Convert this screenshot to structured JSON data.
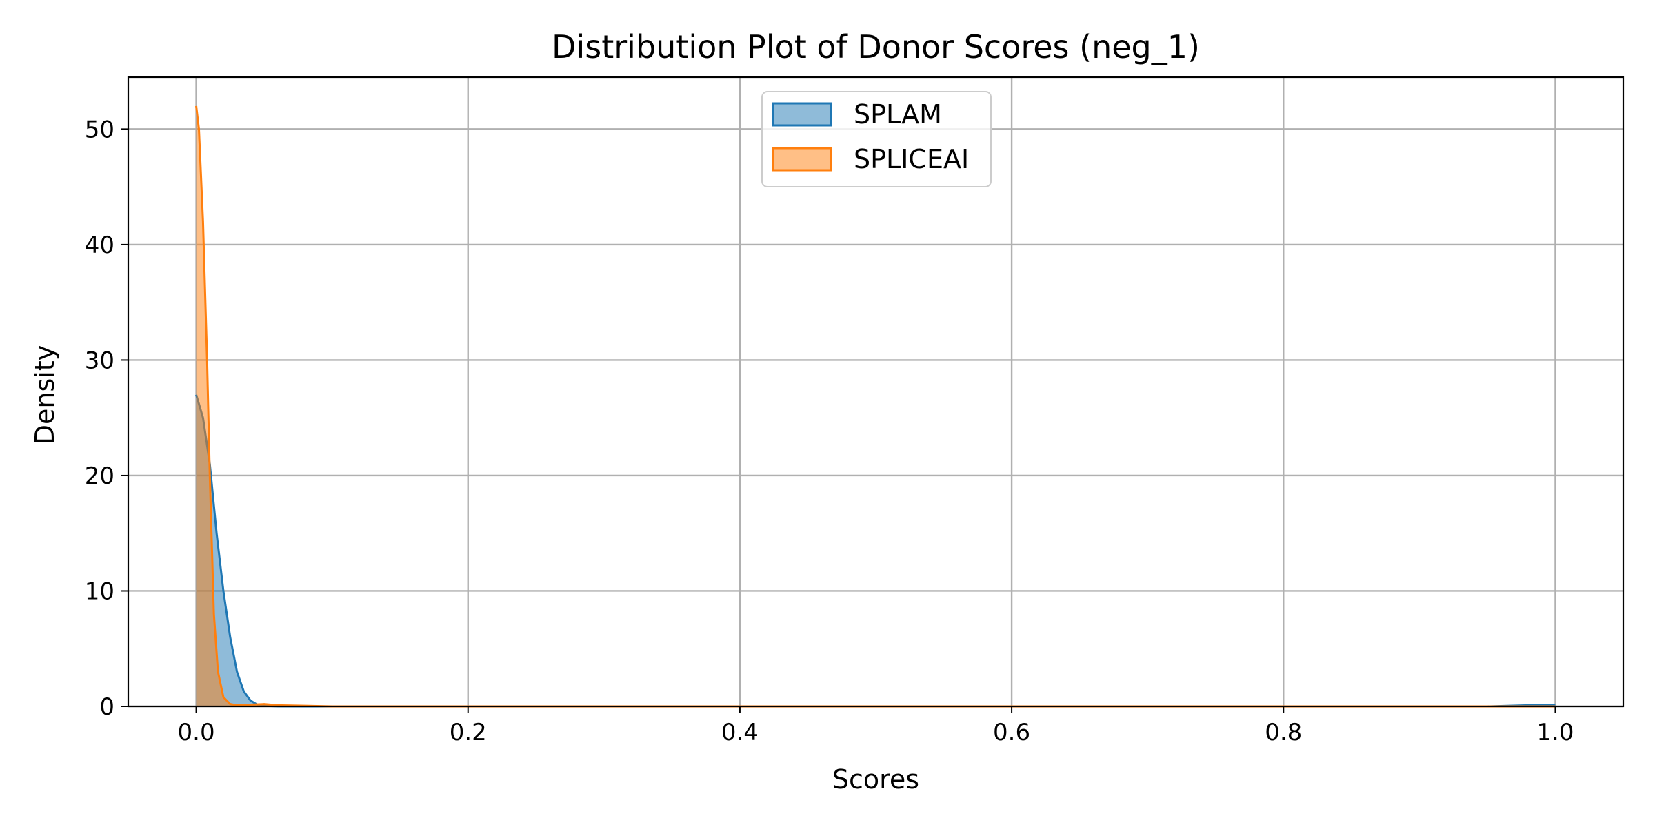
{
  "chart_data": {
    "type": "area",
    "title": "Distribution Plot of Donor Scores (neg_1)",
    "xlabel": "Scores",
    "ylabel": "Density",
    "xlim": [
      -0.05,
      1.05
    ],
    "ylim": [
      0,
      54.5
    ],
    "xticks": [
      0.0,
      0.2,
      0.4,
      0.6,
      0.8,
      1.0
    ],
    "xtick_labels": [
      "0.0",
      "0.2",
      "0.4",
      "0.6",
      "0.8",
      "1.0"
    ],
    "yticks": [
      0,
      10,
      20,
      30,
      40,
      50
    ],
    "ytick_labels": [
      "0",
      "10",
      "20",
      "30",
      "40",
      "50"
    ],
    "grid": true,
    "legend_position": "top-center",
    "series": [
      {
        "name": "SPLAM",
        "color": "#1f77b4",
        "fill_color": "#1f77b4",
        "x": [
          0.0,
          0.005,
          0.01,
          0.015,
          0.02,
          0.025,
          0.03,
          0.035,
          0.04,
          0.045,
          0.05,
          0.06,
          0.08,
          0.1,
          0.2,
          0.4,
          0.6,
          0.8,
          0.95,
          0.98,
          1.0
        ],
        "y": [
          27.0,
          25.0,
          21.0,
          15.0,
          10.0,
          6.0,
          3.0,
          1.3,
          0.5,
          0.15,
          0.05,
          0.01,
          0.0,
          0.0,
          0.0,
          0.0,
          0.0,
          0.0,
          0.0,
          0.1,
          0.1
        ]
      },
      {
        "name": "SPLICEAI",
        "color": "#ff7f0e",
        "fill_color": "#ff7f0e",
        "x": [
          0.0,
          0.002,
          0.005,
          0.008,
          0.01,
          0.013,
          0.016,
          0.02,
          0.025,
          0.03,
          0.04,
          0.05,
          0.06,
          0.08,
          0.1,
          0.2,
          0.4,
          0.6,
          0.8,
          1.0
        ],
        "y": [
          52.0,
          50.0,
          42.0,
          30.0,
          20.0,
          8.0,
          3.0,
          0.8,
          0.2,
          0.1,
          0.15,
          0.2,
          0.1,
          0.05,
          0.0,
          0.0,
          0.0,
          0.0,
          0.0,
          0.0
        ]
      }
    ]
  }
}
